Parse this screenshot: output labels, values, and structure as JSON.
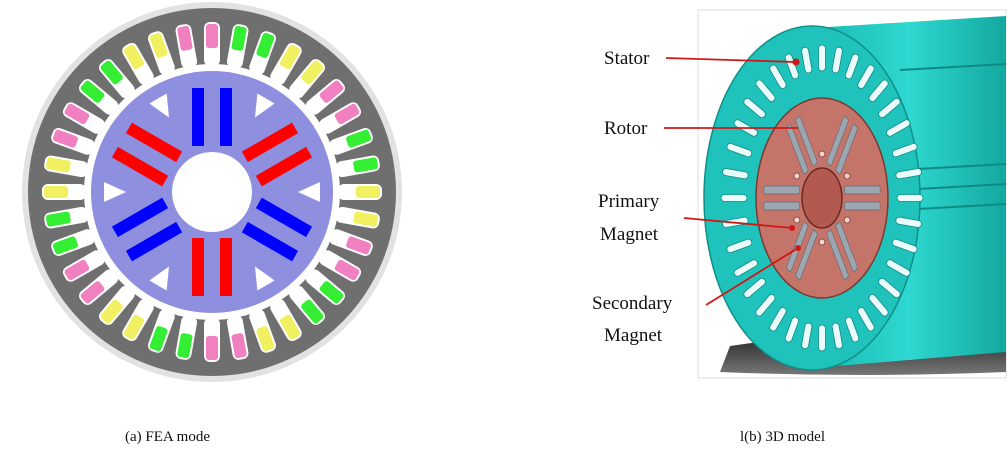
{
  "panel_a": {
    "caption": "(a) FEA mode",
    "colors": {
      "stator": "#6f6f6f",
      "stator_border": "#e2e2e2",
      "rotor": "#8f8fe0",
      "shaft": "#ffffff",
      "primary_magnet": "#ff0000",
      "secondary_magnet": "#0000ff",
      "coil_green": "#33ee33",
      "coil_yellow": "#f0f060",
      "coil_pink": "#f080c0"
    }
  },
  "panel_b": {
    "caption": "l(b) 3D model",
    "labels": {
      "stator": "Stator",
      "rotor": "Rotor",
      "primary_line1": "Primary",
      "primary_line2": "Magnet",
      "secondary_line1": "Secondary",
      "secondary_line2": "Magnet"
    },
    "colors": {
      "stator": "#1ec8c0",
      "rotor": "#c87a70",
      "leader": "#d01818"
    }
  }
}
